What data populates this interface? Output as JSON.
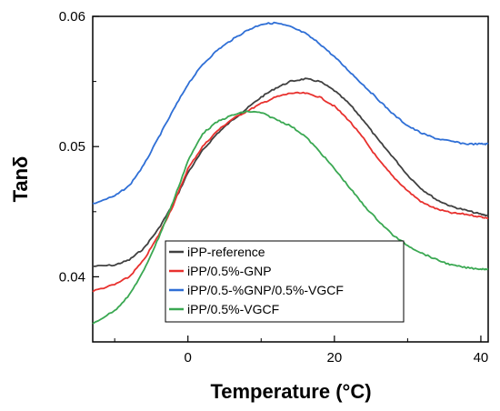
{
  "chart_data": {
    "type": "line",
    "xlabel": "Temperature (°C)",
    "ylabel": "Tanδ",
    "xlim": [
      -13,
      41
    ],
    "ylim": [
      0.035,
      0.06
    ],
    "x_ticks": [
      0,
      20,
      40
    ],
    "x_tick_labels": [
      "0",
      "20",
      "40"
    ],
    "y_ticks": [
      0.04,
      0.05,
      0.06
    ],
    "y_tick_labels": [
      "0.04",
      "0.05",
      "0.06"
    ],
    "grid": false,
    "legend_position": "bottom-left",
    "series": [
      {
        "name": "iPP-reference",
        "color": "#404040",
        "x": [
          -13,
          -10,
          -8,
          -6,
          -4,
          -2,
          0,
          2,
          4,
          6,
          8,
          10,
          12,
          14,
          16,
          18,
          20,
          22,
          24,
          26,
          28,
          30,
          32,
          34,
          36,
          38,
          40,
          41
        ],
        "y": [
          0.0408,
          0.0409,
          0.0413,
          0.0422,
          0.0437,
          0.0456,
          0.048,
          0.0497,
          0.051,
          0.052,
          0.0529,
          0.0538,
          0.0545,
          0.055,
          0.0552,
          0.055,
          0.0543,
          0.0533,
          0.052,
          0.0505,
          0.0492,
          0.0478,
          0.0467,
          0.0459,
          0.0454,
          0.0451,
          0.0448,
          0.0447
        ]
      },
      {
        "name": "iPP/0.5%-GNP",
        "color": "#e8312e",
        "x": [
          -13,
          -10,
          -8,
          -6,
          -4,
          -2,
          0,
          2,
          4,
          6,
          8,
          10,
          12,
          14,
          16,
          18,
          20,
          22,
          24,
          26,
          28,
          30,
          32,
          34,
          36,
          38,
          40,
          41
        ],
        "y": [
          0.0389,
          0.0394,
          0.04,
          0.0413,
          0.0432,
          0.0455,
          0.0483,
          0.05,
          0.0512,
          0.0521,
          0.0527,
          0.0533,
          0.0538,
          0.0541,
          0.0541,
          0.0538,
          0.0531,
          0.052,
          0.0506,
          0.049,
          0.0477,
          0.0466,
          0.0457,
          0.0452,
          0.0449,
          0.0448,
          0.0446,
          0.0445
        ]
      },
      {
        "name": "iPP/0.5-%GNP/0.5%-VGCF",
        "color": "#2f6fd6",
        "x": [
          -13,
          -10,
          -8,
          -6,
          -4,
          -2,
          0,
          2,
          4,
          6,
          8,
          10,
          12,
          14,
          16,
          18,
          20,
          22,
          24,
          26,
          28,
          30,
          32,
          34,
          36,
          38,
          40,
          41
        ],
        "y": [
          0.0456,
          0.0462,
          0.047,
          0.0486,
          0.0507,
          0.0528,
          0.0548,
          0.0563,
          0.0574,
          0.0582,
          0.0589,
          0.0594,
          0.0595,
          0.0592,
          0.0587,
          0.0579,
          0.0569,
          0.0558,
          0.0547,
          0.0536,
          0.0525,
          0.0516,
          0.051,
          0.0506,
          0.0504,
          0.0502,
          0.0502,
          0.0502
        ]
      },
      {
        "name": "iPP/0.5%-VGCF",
        "color": "#3aa852",
        "x": [
          -13,
          -10,
          -8,
          -6,
          -4,
          -2,
          0,
          2,
          4,
          6,
          8,
          10,
          12,
          14,
          16,
          18,
          20,
          22,
          24,
          26,
          28,
          30,
          32,
          34,
          36,
          38,
          40,
          41
        ],
        "y": [
          0.0364,
          0.0374,
          0.0386,
          0.0405,
          0.043,
          0.0458,
          0.0489,
          0.051,
          0.0519,
          0.0524,
          0.0527,
          0.0526,
          0.0521,
          0.0516,
          0.0508,
          0.0496,
          0.0483,
          0.0469,
          0.0455,
          0.0443,
          0.0432,
          0.0424,
          0.0418,
          0.0413,
          0.0409,
          0.0407,
          0.0406,
          0.0406
        ]
      }
    ]
  }
}
